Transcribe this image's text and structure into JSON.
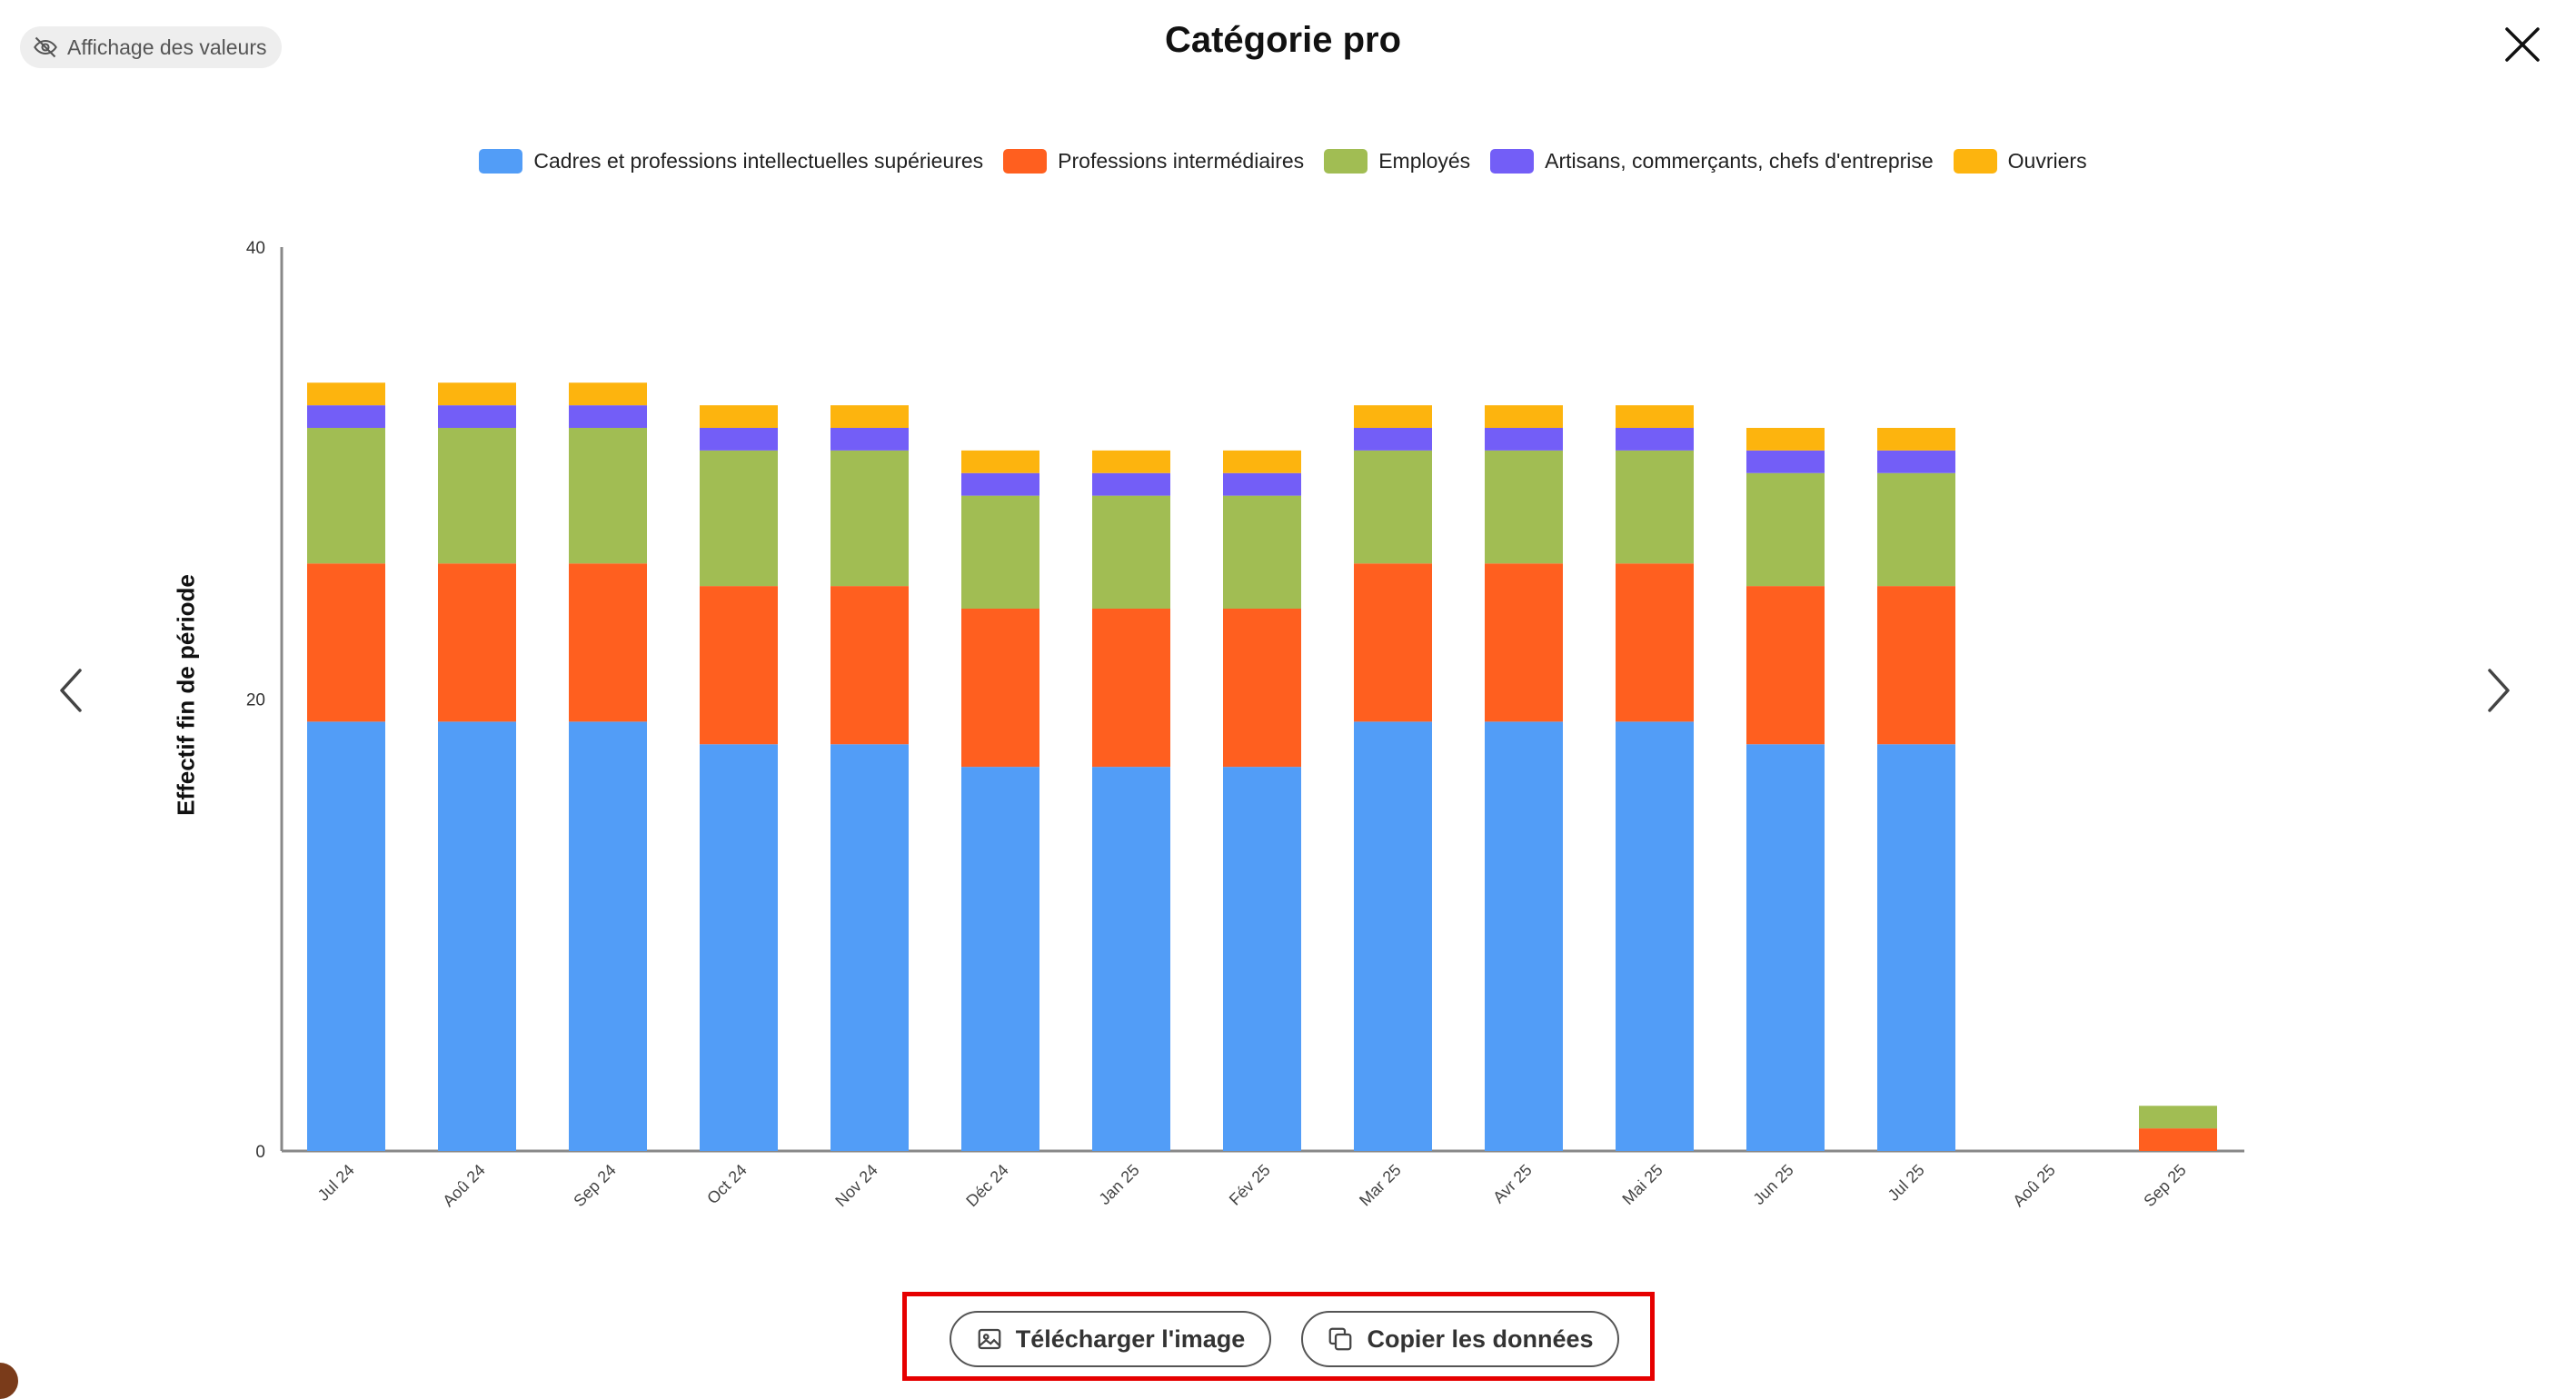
{
  "toolbar": {
    "toggle_label": "Affichage des valeurs",
    "toggle_icon": "eye-off-icon",
    "close_icon": "close-icon"
  },
  "navigation": {
    "prev_icon": "chevron-left-icon",
    "next_icon": "chevron-right-icon"
  },
  "actions": {
    "download_label": "Télécharger l'image",
    "download_icon": "image-icon",
    "copy_label": "Copier les données",
    "copy_icon": "copy-icon"
  },
  "colors": {
    "highlight": "#e60000",
    "axis": "#888888"
  },
  "chart_data": {
    "type": "bar",
    "stacked": true,
    "title": "Catégorie pro",
    "xlabel": "",
    "ylabel": "Effectif fin de période",
    "ylim": [
      0,
      40
    ],
    "yticks": [
      0,
      20,
      40
    ],
    "legend_position": "top-center",
    "categories": [
      "Jul 24",
      "Aoû 24",
      "Sep 24",
      "Oct 24",
      "Nov 24",
      "Déc 24",
      "Jan 25",
      "Fév 25",
      "Mar 25",
      "Avr 25",
      "Mai 25",
      "Jun 25",
      "Jul 25",
      "Aoû 25",
      "Sep 25"
    ],
    "series": [
      {
        "name": "Cadres et professions intellectuelles supérieures",
        "color": "#529df7",
        "values": [
          19,
          19,
          19,
          18,
          18,
          17,
          17,
          17,
          19,
          19,
          19,
          18,
          18,
          0,
          0
        ]
      },
      {
        "name": "Professions intermédiaires",
        "color": "#ff5f1f",
        "values": [
          7,
          7,
          7,
          7,
          7,
          7,
          7,
          7,
          7,
          7,
          7,
          7,
          7,
          0,
          1
        ]
      },
      {
        "name": "Employés",
        "color": "#a1bd53",
        "values": [
          6,
          6,
          6,
          6,
          6,
          5,
          5,
          5,
          5,
          5,
          5,
          5,
          5,
          0,
          1
        ]
      },
      {
        "name": "Artisans, commerçants, chefs d'entreprise",
        "color": "#735ef7",
        "values": [
          1,
          1,
          1,
          1,
          1,
          1,
          1,
          1,
          1,
          1,
          1,
          1,
          1,
          0,
          0
        ]
      },
      {
        "name": "Ouvriers",
        "color": "#fdb40e",
        "values": [
          1,
          1,
          1,
          1,
          1,
          1,
          1,
          1,
          1,
          1,
          1,
          1,
          1,
          0,
          0
        ]
      }
    ]
  }
}
